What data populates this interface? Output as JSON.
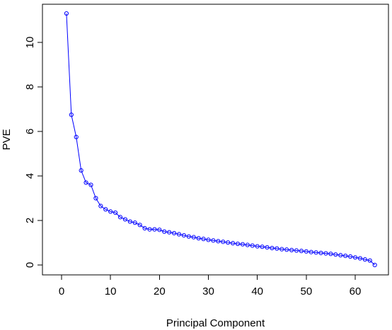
{
  "chart_data": {
    "type": "line",
    "xlabel": "Principal Component",
    "ylabel": "PVE",
    "xlim": [
      0,
      65
    ],
    "ylim": [
      -0.4,
      11.7
    ],
    "x_ticks": [
      0,
      10,
      20,
      30,
      40,
      50,
      60
    ],
    "y_ticks": [
      0,
      2,
      4,
      6,
      8,
      10
    ],
    "grid": false,
    "legend": "none",
    "markers": "open-circle",
    "color": "#0000ff",
    "x": [
      1,
      2,
      3,
      4,
      5,
      6,
      7,
      8,
      9,
      10,
      11,
      12,
      13,
      14,
      15,
      16,
      17,
      18,
      19,
      20,
      21,
      22,
      23,
      24,
      25,
      26,
      27,
      28,
      29,
      30,
      31,
      32,
      33,
      34,
      35,
      36,
      37,
      38,
      39,
      40,
      41,
      42,
      43,
      44,
      45,
      46,
      47,
      48,
      49,
      50,
      51,
      52,
      53,
      54,
      55,
      56,
      57,
      58,
      59,
      60,
      61,
      62,
      63,
      64
    ],
    "values": [
      11.3,
      6.75,
      5.75,
      4.25,
      3.7,
      3.6,
      3.0,
      2.65,
      2.5,
      2.4,
      2.35,
      2.15,
      2.05,
      1.95,
      1.9,
      1.8,
      1.65,
      1.6,
      1.6,
      1.58,
      1.5,
      1.47,
      1.43,
      1.38,
      1.33,
      1.28,
      1.25,
      1.2,
      1.17,
      1.13,
      1.1,
      1.07,
      1.04,
      1.01,
      0.98,
      0.95,
      0.93,
      0.9,
      0.87,
      0.84,
      0.82,
      0.79,
      0.76,
      0.74,
      0.71,
      0.69,
      0.67,
      0.65,
      0.63,
      0.61,
      0.58,
      0.56,
      0.54,
      0.52,
      0.5,
      0.47,
      0.44,
      0.41,
      0.38,
      0.34,
      0.3,
      0.25,
      0.2,
      0.0
    ]
  }
}
